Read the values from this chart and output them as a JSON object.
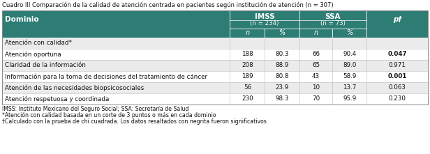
{
  "title": "Cuadro III Comparación de la calidad de atención centrada en pacientes según institución de atención (n = 307)",
  "header_bg": "#2e7d74",
  "row_bg_odd": "#ebebeb",
  "row_bg_even": "#ffffff",
  "col_dominio": "Dominio",
  "col_imss": "IMSS",
  "col_imss_n": "(n = 234)",
  "col_ssa": "SSA",
  "col_ssa_n": "(n = 73)",
  "col_p": "p†",
  "subheaders": [
    "n",
    "%",
    "n",
    "%"
  ],
  "rows": [
    {
      "label": "Atención con calidad*",
      "imss_n": "",
      "imss_pct": "",
      "ssa_n": "",
      "ssa_pct": "",
      "p": "",
      "bold_p": false
    },
    {
      "label": "Atención oportuna",
      "imss_n": "188",
      "imss_pct": "80.3",
      "ssa_n": "66",
      "ssa_pct": "90.4",
      "p": "0.047",
      "bold_p": true
    },
    {
      "label": "Claridad de la información",
      "imss_n": "208",
      "imss_pct": "88.9",
      "ssa_n": "65",
      "ssa_pct": "89.0",
      "p": "0.971",
      "bold_p": false
    },
    {
      "label": "Información para la toma de decisiones del tratamiento de cáncer",
      "imss_n": "189",
      "imss_pct": "80.8",
      "ssa_n": "43",
      "ssa_pct": "58.9",
      "p": "0.001",
      "bold_p": true
    },
    {
      "label": "Atención de las necesidades biopsicosociales",
      "imss_n": "56",
      "imss_pct": "23.9",
      "ssa_n": "10",
      "ssa_pct": "13.7",
      "p": "0.063",
      "bold_p": false
    },
    {
      "label": "Atención respetuosa y coordinada",
      "imss_n": "230",
      "imss_pct": "98.3",
      "ssa_n": "70",
      "ssa_pct": "95.9",
      "p": "0.230",
      "bold_p": false
    }
  ],
  "footnotes": [
    "IMSS: Instituto Mexicano del Seguro Social; SSA: Secretaría de Salud",
    "*Atención con calidad basada en un corte de 3 puntos o más en cada dominio",
    "†Calculado con la prueba de chi cuadrada. Los datos resaltados con negrita fueron significativos"
  ],
  "col_pcts": [
    0.0,
    0.535,
    0.617,
    0.698,
    0.776,
    0.856,
    1.0
  ]
}
